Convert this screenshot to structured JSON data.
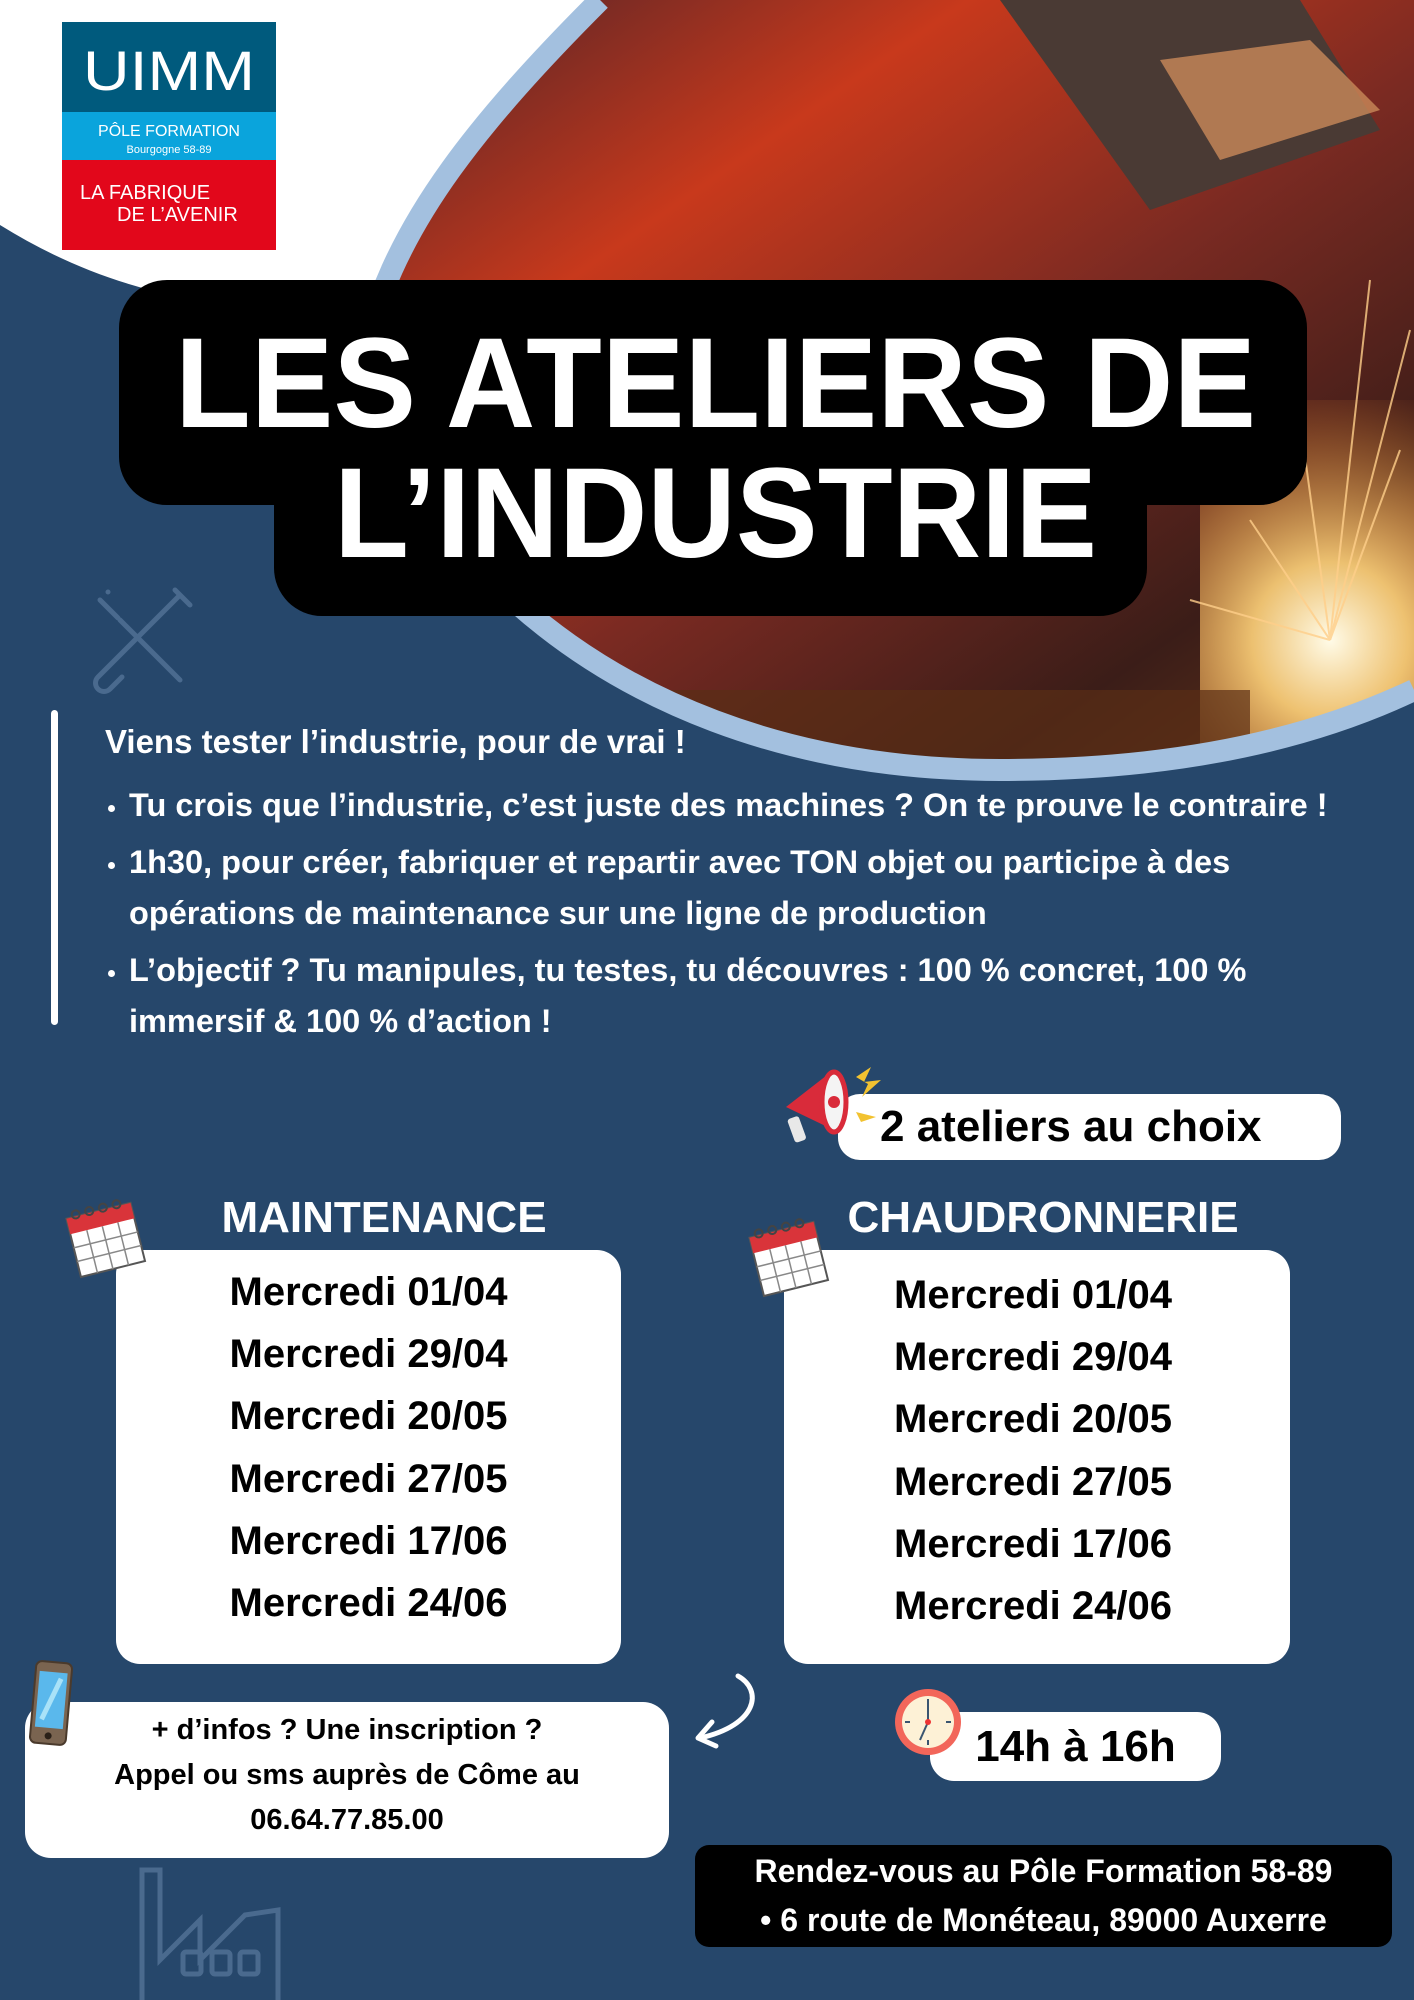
{
  "logo": {
    "brand": "UIMM",
    "line1": "PÔLE FORMATION",
    "line2": "Bourgogne 58-89",
    "line3": "LA FABRIQUE",
    "line4": "DE L’AVENIR",
    "colors": {
      "top": "#005a7d",
      "middle": "#0aa4dc",
      "bottom": "#e2071b"
    }
  },
  "title": {
    "line1": "LES ATELIERS DE",
    "line2": "L’INDUSTRIE"
  },
  "intro": {
    "heading": "Viens tester l’industrie, pour de vrai !",
    "bullets": [
      "Tu crois que l’industrie, c’est juste des machines ? On te prouve le contraire !",
      "1h30, pour créer, fabriquer et repartir avec TON objet ou participe à des opérations de maintenance sur une ligne de production",
      "L’objectif ? Tu manipules, tu testes, tu découvres : 100 % concret, 100 % immersif & 100 % d’action !"
    ]
  },
  "choice_label": "2 ateliers au choix",
  "workshops": [
    {
      "name": "MAINTENANCE",
      "dates": [
        "Mercredi 01/04",
        "Mercredi 29/04",
        "Mercredi 20/05",
        "Mercredi 27/05",
        "Mercredi 17/06",
        "Mercredi 24/06"
      ]
    },
    {
      "name": "CHAUDRONNERIE",
      "dates": [
        "Mercredi 01/04",
        "Mercredi 29/04",
        "Mercredi 20/05",
        "Mercredi 27/05",
        "Mercredi 17/06",
        "Mercredi 24/06"
      ]
    }
  ],
  "contact": {
    "line1": "+ d’infos ? Une inscription ?",
    "line2": "Appel ou sms auprès de Côme au",
    "phone": "06.64.77.85.00"
  },
  "time": "14h à 16h",
  "address": {
    "line1": "Rendez-vous au Pôle Formation 58-89",
    "line2": "• 6 route de Monéteau, 89000 Auxerre"
  },
  "colors": {
    "background": "#26476b",
    "ring": "#a3c0df",
    "title_box": "#000000"
  },
  "icons": [
    "wrench-screwdriver-icon",
    "megaphone-icon",
    "calendar-icon",
    "phone-icon",
    "curved-arrow-icon",
    "clock-icon",
    "factory-icon"
  ]
}
